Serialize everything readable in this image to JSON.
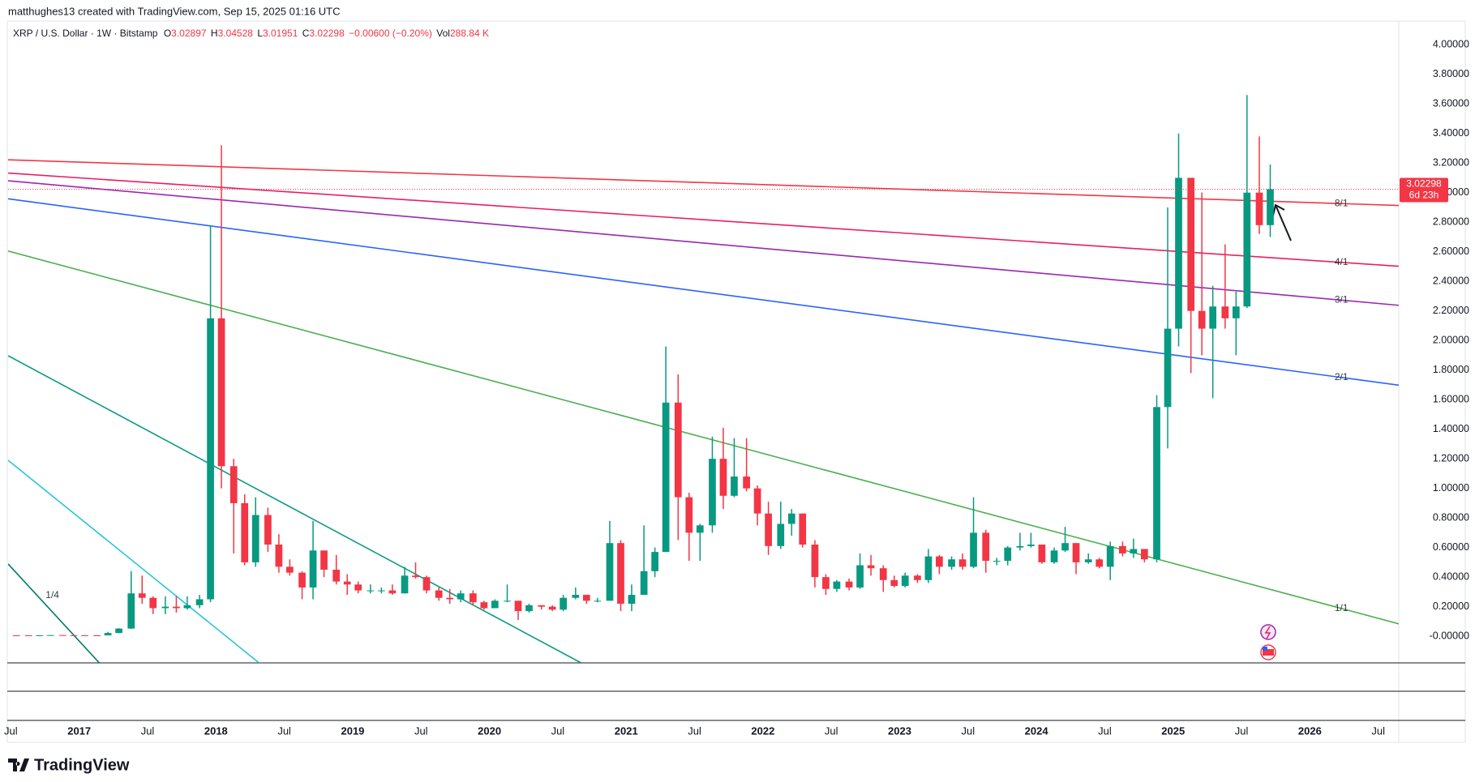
{
  "header": {
    "attribution": "matthughes13 created with TradingView.com, Sep 15, 2025 01:16 UTC"
  },
  "chart_data": {
    "type": "candlestick",
    "symbol": "XRP / U.S. Dollar · 1W · Bitstamp",
    "legend": {
      "open_label": "O",
      "open": 3.02897,
      "high_label": "H",
      "high": 3.04528,
      "low_label": "L",
      "low": 3.01951,
      "close_label": "C",
      "close": 3.02298,
      "change": {
        "value": -0.006,
        "label": "−0.00600"
      },
      "change_pct": {
        "value": -0.2,
        "label": "(−0.20%)"
      },
      "volume_label": "Vol",
      "volume": {
        "value": 288840,
        "label": "288.84 K"
      }
    },
    "up_color": "#089981",
    "down_color": "#f23645",
    "x": [
      2016.54,
      2016.63,
      2016.71,
      2016.79,
      2016.88,
      2016.96,
      2017.04,
      2017.13,
      2017.21,
      2017.29,
      2017.38,
      2017.46,
      2017.54,
      2017.63,
      2017.71,
      2017.79,
      2017.88,
      2017.96,
      2018.04,
      2018.13,
      2018.21,
      2018.29,
      2018.38,
      2018.46,
      2018.54,
      2018.63,
      2018.71,
      2018.79,
      2018.88,
      2018.96,
      2019.04,
      2019.13,
      2019.21,
      2019.29,
      2019.38,
      2019.46,
      2019.54,
      2019.63,
      2019.71,
      2019.79,
      2019.88,
      2019.96,
      2020.04,
      2020.13,
      2020.21,
      2020.29,
      2020.38,
      2020.46,
      2020.54,
      2020.63,
      2020.71,
      2020.79,
      2020.88,
      2020.96,
      2021.04,
      2021.13,
      2021.21,
      2021.29,
      2021.38,
      2021.46,
      2021.54,
      2021.63,
      2021.71,
      2021.79,
      2021.88,
      2021.96,
      2022.04,
      2022.13,
      2022.21,
      2022.29,
      2022.38,
      2022.46,
      2022.54,
      2022.63,
      2022.71,
      2022.79,
      2022.88,
      2022.96,
      2023.04,
      2023.13,
      2023.21,
      2023.29,
      2023.38,
      2023.46,
      2023.54,
      2023.63,
      2023.71,
      2023.79,
      2023.88,
      2023.96,
      2024.04,
      2024.13,
      2024.21,
      2024.29,
      2024.38,
      2024.46,
      2024.54,
      2024.63,
      2024.71,
      2024.79,
      2024.88,
      2024.96,
      2025.04,
      2025.13,
      2025.21,
      2025.29,
      2025.38,
      2025.46,
      2025.54,
      2025.63,
      2025.71
    ],
    "open": [
      0.0065,
      0.0063,
      0.006,
      0.0064,
      0.008,
      0.007,
      0.0065,
      0.0063,
      0.006,
      0.022,
      0.052,
      0.29,
      0.26,
      0.19,
      0.2,
      0.19,
      0.21,
      0.25,
      2.15,
      1.15,
      0.9,
      0.5,
      0.82,
      0.62,
      0.47,
      0.43,
      0.33,
      0.58,
      0.45,
      0.37,
      0.35,
      0.31,
      0.31,
      0.31,
      0.29,
      0.41,
      0.4,
      0.31,
      0.26,
      0.25,
      0.29,
      0.23,
      0.19,
      0.24,
      0.24,
      0.17,
      0.21,
      0.2,
      0.18,
      0.26,
      0.28,
      0.24,
      0.24,
      0.63,
      0.22,
      0.28,
      0.44,
      0.57,
      1.58,
      0.94,
      0.7,
      0.75,
      1.2,
      0.95,
      1.08,
      1,
      0.83,
      0.61,
      0.76,
      0.83,
      0.62,
      0.4,
      0.32,
      0.37,
      0.33,
      0.48,
      0.46,
      0.38,
      0.34,
      0.41,
      0.38,
      0.54,
      0.47,
      0.52,
      0.47,
      0.7,
      0.51,
      0.51,
      0.6,
      0.61,
      0.62,
      0.5,
      0.58,
      0.63,
      0.5,
      0.52,
      0.47,
      0.61,
      0.56,
      0.59,
      0.52,
      1.55,
      2.08,
      3.1,
      2.2,
      2.08,
      2.23,
      2.15,
      2.23,
      3,
      2.78
    ],
    "high": [
      0.007,
      0.0068,
      0.0066,
      0.009,
      0.009,
      0.007,
      0.007,
      0.0068,
      0.03,
      0.055,
      0.44,
      0.41,
      0.27,
      0.27,
      0.27,
      0.27,
      0.28,
      2.78,
      3.32,
      1.2,
      0.96,
      0.94,
      0.87,
      0.69,
      0.52,
      0.44,
      0.78,
      0.58,
      0.55,
      0.42,
      0.37,
      0.35,
      0.33,
      0.35,
      0.47,
      0.5,
      0.41,
      0.33,
      0.32,
      0.31,
      0.31,
      0.24,
      0.25,
      0.35,
      0.24,
      0.22,
      0.21,
      0.21,
      0.28,
      0.33,
      0.28,
      0.26,
      0.78,
      0.65,
      0.35,
      0.75,
      0.6,
      1.96,
      1.77,
      0.97,
      0.76,
      1.35,
      1.41,
      1.34,
      1.34,
      1.02,
      0.91,
      0.91,
      0.86,
      0.83,
      0.65,
      0.42,
      0.38,
      0.39,
      0.56,
      0.55,
      0.48,
      0.41,
      0.43,
      0.42,
      0.59,
      0.55,
      0.54,
      0.56,
      0.94,
      0.72,
      0.53,
      0.61,
      0.7,
      0.7,
      0.62,
      0.6,
      0.74,
      0.63,
      0.56,
      0.53,
      0.64,
      0.64,
      0.66,
      0.59,
      1.63,
      2.9,
      3.4,
      3.1,
      3,
      2.37,
      2.65,
      2.33,
      3.66,
      3.38,
      3.19
    ],
    "low": [
      0.006,
      0.0058,
      0.0058,
      0.0062,
      0.0068,
      0.006,
      0.006,
      0.0058,
      0.006,
      0.02,
      0.05,
      0.22,
      0.15,
      0.15,
      0.16,
      0.18,
      0.19,
      0.23,
      1,
      0.56,
      0.48,
      0.47,
      0.57,
      0.43,
      0.41,
      0.25,
      0.25,
      0.4,
      0.35,
      0.28,
      0.29,
      0.29,
      0.29,
      0.28,
      0.29,
      0.39,
      0.29,
      0.24,
      0.22,
      0.23,
      0.21,
      0.18,
      0.19,
      0.23,
      0.11,
      0.16,
      0.18,
      0.17,
      0.17,
      0.25,
      0.22,
      0.23,
      0.24,
      0.17,
      0.17,
      0.28,
      0.4,
      0.57,
      0.65,
      0.51,
      0.51,
      0.7,
      0.86,
      0.94,
      0.98,
      0.75,
      0.55,
      0.59,
      0.68,
      0.6,
      0.33,
      0.28,
      0.3,
      0.31,
      0.32,
      0.41,
      0.3,
      0.33,
      0.33,
      0.36,
      0.36,
      0.42,
      0.45,
      0.45,
      0.46,
      0.43,
      0.48,
      0.48,
      0.58,
      0.6,
      0.49,
      0.49,
      0.57,
      0.42,
      0.49,
      0.46,
      0.38,
      0.54,
      0.53,
      0.5,
      0.5,
      1.27,
      1.96,
      1.78,
      1.9,
      1.61,
      2.08,
      1.9,
      2.22,
      2.72,
      2.7
    ],
    "close": [
      0.0063,
      0.006,
      0.0064,
      0.008,
      0.007,
      0.0065,
      0.0063,
      0.006,
      0.022,
      0.052,
      0.29,
      0.26,
      0.19,
      0.2,
      0.19,
      0.21,
      0.25,
      2.15,
      1.15,
      0.9,
      0.5,
      0.82,
      0.62,
      0.47,
      0.43,
      0.33,
      0.58,
      0.45,
      0.37,
      0.35,
      0.31,
      0.31,
      0.31,
      0.29,
      0.41,
      0.4,
      0.31,
      0.26,
      0.25,
      0.29,
      0.23,
      0.19,
      0.24,
      0.24,
      0.17,
      0.21,
      0.2,
      0.18,
      0.26,
      0.28,
      0.24,
      0.24,
      0.63,
      0.22,
      0.28,
      0.44,
      0.57,
      1.58,
      0.94,
      0.7,
      0.75,
      1.2,
      0.95,
      1.08,
      1,
      0.83,
      0.61,
      0.76,
      0.83,
      0.62,
      0.4,
      0.32,
      0.37,
      0.33,
      0.48,
      0.46,
      0.38,
      0.34,
      0.41,
      0.38,
      0.54,
      0.47,
      0.52,
      0.47,
      0.7,
      0.51,
      0.51,
      0.6,
      0.61,
      0.62,
      0.5,
      0.58,
      0.63,
      0.5,
      0.52,
      0.47,
      0.61,
      0.56,
      0.59,
      0.52,
      1.55,
      2.08,
      3.1,
      2.2,
      2.08,
      2.23,
      2.15,
      2.23,
      3,
      2.78,
      3.02298
    ],
    "xlim": [
      2016.48,
      2026.65
    ],
    "ylim": [
      -0.18,
      4.16
    ],
    "grid": false,
    "xticks": [
      {
        "value": 2016.5,
        "label": "Jul"
      },
      2017,
      {
        "value": 2017.5,
        "label": "Jul"
      },
      2018,
      {
        "value": 2018.5,
        "label": "Jul"
      },
      2019,
      {
        "value": 2019.5,
        "label": "Jul"
      },
      2020,
      {
        "value": 2020.5,
        "label": "Jul"
      },
      2021,
      {
        "value": 2021.5,
        "label": "Jul"
      },
      2022,
      {
        "value": 2022.5,
        "label": "Jul"
      },
      2023,
      {
        "value": 2023.5,
        "label": "Jul"
      },
      2024,
      {
        "value": 2024.5,
        "label": "Jul"
      },
      2025,
      {
        "value": 2025.5,
        "label": "Jul"
      },
      2026,
      {
        "value": 2026.5,
        "label": "Jul"
      }
    ],
    "yticks": [
      {
        "value": 4,
        "label": "4.00000"
      },
      {
        "value": 3.8,
        "label": "3.80000"
      },
      {
        "value": 3.6,
        "label": "3.60000"
      },
      {
        "value": 3.4,
        "label": "3.40000"
      },
      {
        "value": 3.2,
        "label": "3.20000"
      },
      {
        "value": 3,
        "label": "3.00000"
      },
      {
        "value": 2.8,
        "label": "2.80000"
      },
      {
        "value": 2.6,
        "label": "2.60000"
      },
      {
        "value": 2.4,
        "label": "2.40000"
      },
      {
        "value": 2.2,
        "label": "2.20000"
      },
      {
        "value": 2,
        "label": "2.00000"
      },
      {
        "value": 1.8,
        "label": "1.80000"
      },
      {
        "value": 1.6,
        "label": "1.60000"
      },
      {
        "value": 1.4,
        "label": "1.40000"
      },
      {
        "value": 1.2,
        "label": "1.20000"
      },
      {
        "value": 1,
        "label": "1.00000"
      },
      {
        "value": 0.8,
        "label": "0.80000"
      },
      {
        "value": 0.6,
        "label": "0.60000"
      },
      {
        "value": 0.4,
        "label": "0.40000"
      },
      {
        "value": 0.2,
        "label": "0.20000"
      },
      {
        "value": 0,
        "label": "-0.00000"
      }
    ],
    "last_price": 3.02298,
    "countdown": "6d 23h",
    "price_tag_color": "#f23645",
    "trend_lines": [
      {
        "label": "8/1",
        "color": "#f23645",
        "x": [
          2016.48,
          2026.65
        ],
        "y": [
          3.222,
          2.913
        ]
      },
      {
        "label": "4/1",
        "color": "#e91e63",
        "x": [
          2016.48,
          2026.65
        ],
        "y": [
          3.132,
          2.502
        ]
      },
      {
        "label": "3/1",
        "color": "#9c27b0",
        "x": [
          2016.48,
          2026.65
        ],
        "y": [
          3.08,
          2.238
        ]
      },
      {
        "label": "2/1",
        "color": "#2962ff",
        "x": [
          2016.48,
          2026.65
        ],
        "y": [
          2.958,
          1.698
        ]
      },
      {
        "label": "1/1",
        "color": "#4caf50",
        "x": [
          2016.48,
          2026.65
        ],
        "y": [
          2.605,
          0.084
        ]
      },
      {
        "color": "#089981",
        "x": [
          2016.48,
          2020.67
        ],
        "y": [
          1.897,
          -0.18
        ]
      },
      {
        "color": "#26c6da",
        "x": [
          2016.48,
          2018.315
        ],
        "y": [
          1.19,
          -0.18
        ]
      },
      {
        "label": "1/4",
        "color": "#00796b",
        "x": [
          2016.48,
          2017.147
        ],
        "y": [
          0.489,
          -0.18
        ]
      }
    ]
  },
  "footer": {
    "logo": "TradingView"
  }
}
